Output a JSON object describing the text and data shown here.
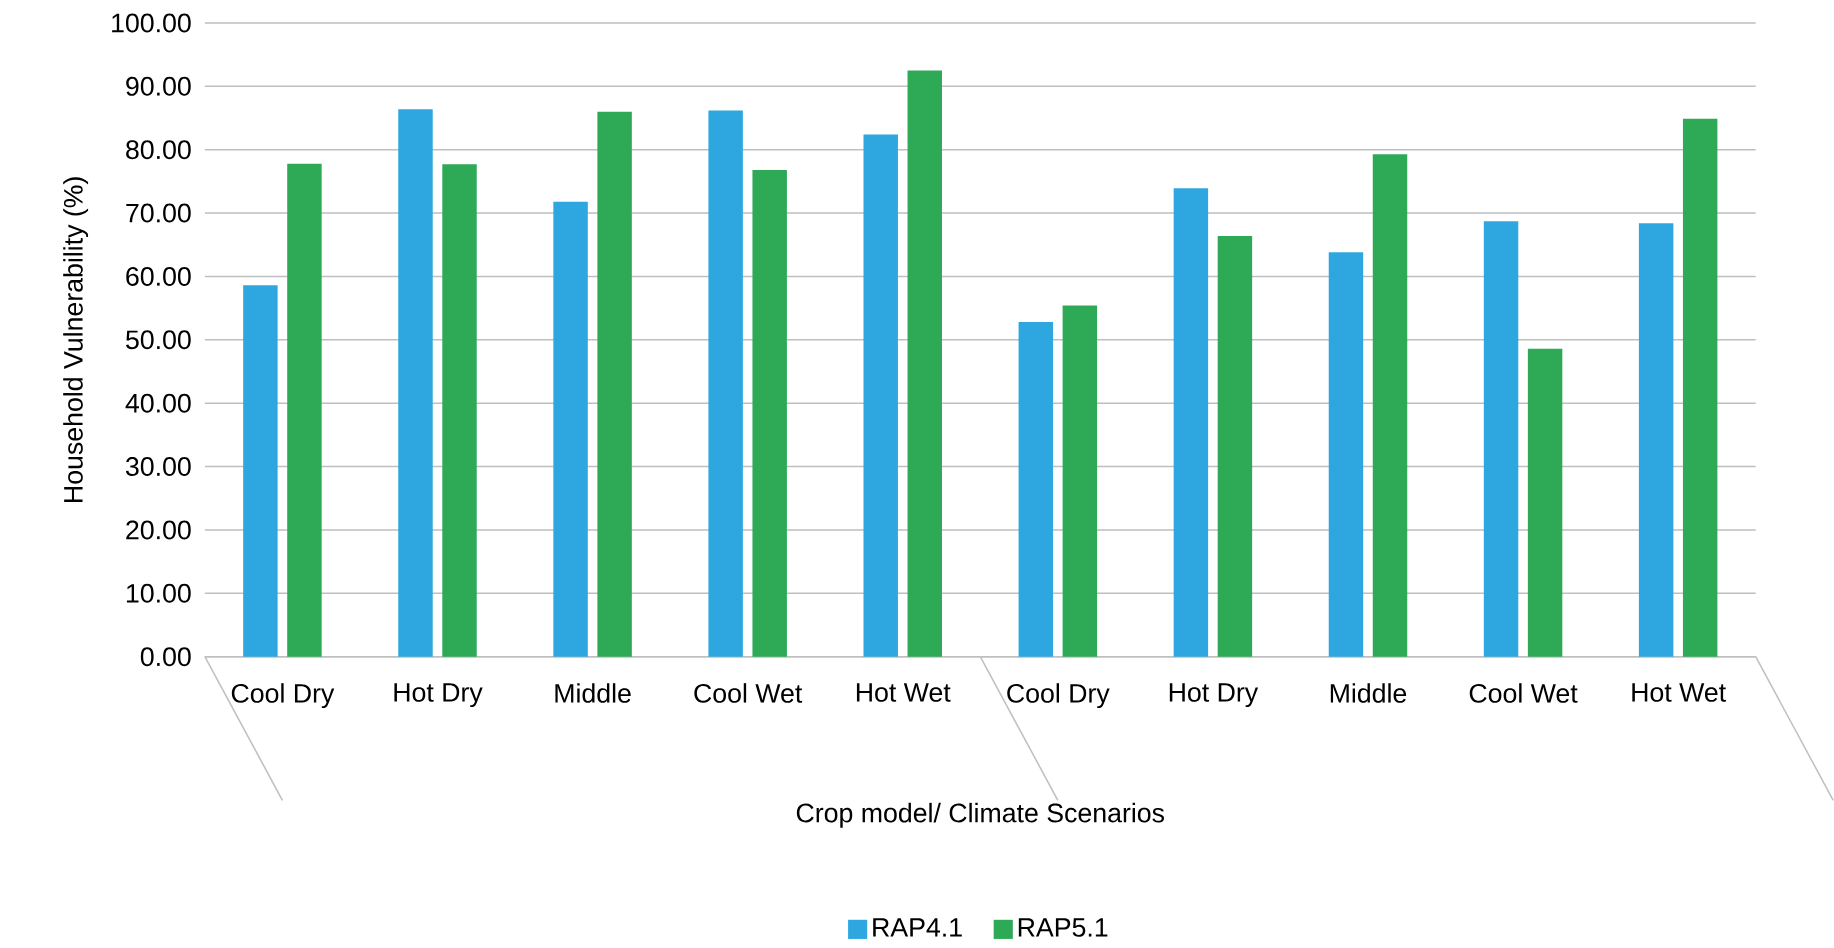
{
  "chart_data": {
    "type": "bar",
    "xlabel": "Crop model/ Climate Scenarios",
    "ylabel": "Household Vulnerability (%)",
    "categories": [
      "Cool Dry",
      "Hot Dry",
      "Middle",
      "Cool Wet",
      "Hot Wet",
      "Cool Dry",
      "Hot Dry",
      "Middle",
      "Cool Wet",
      "Hot Wet"
    ],
    "series": [
      {
        "name": "RAP4.1",
        "color": "#2ea7e0",
        "values": [
          58.6,
          86.4,
          71.8,
          86.2,
          82.4,
          52.8,
          73.9,
          63.8,
          68.7,
          68.4
        ]
      },
      {
        "name": "RAP5.1",
        "color": "#2eaa57",
        "values": [
          77.8,
          77.7,
          86.0,
          76.8,
          92.5,
          55.4,
          66.4,
          79.3,
          48.6,
          84.9
        ]
      }
    ],
    "ylim": [
      0,
      100
    ],
    "yticks": [
      {
        "value": 0,
        "label": "0.00"
      },
      {
        "value": 10,
        "label": "10.00"
      },
      {
        "value": 20,
        "label": "20.00"
      },
      {
        "value": 30,
        "label": "30.00"
      },
      {
        "value": 40,
        "label": "40.00"
      },
      {
        "value": 50,
        "label": "50.00"
      },
      {
        "value": 60,
        "label": "60.00"
      },
      {
        "value": 70,
        "label": "70.00"
      },
      {
        "value": 80,
        "label": "80.00"
      },
      {
        "value": 90,
        "label": "90.00"
      },
      {
        "value": 100,
        "label": "100.00"
      }
    ],
    "grid": "y",
    "legend": "bottom"
  }
}
